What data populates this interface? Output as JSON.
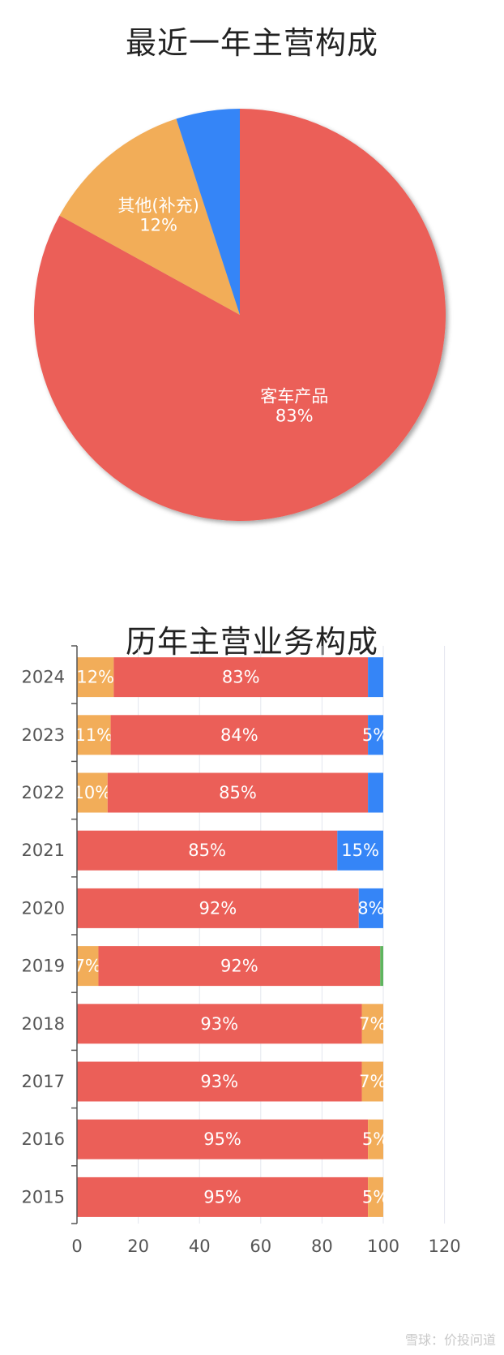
{
  "chart_data": [
    {
      "type": "pie",
      "title": "最近一年主营构成",
      "slices": [
        {
          "name": "客车产品",
          "value": 83,
          "label": "83%",
          "color": "#EB5F58"
        },
        {
          "name": "其他(补充)",
          "value": 12,
          "label": "12%",
          "color": "#F2AD59"
        },
        {
          "name": "",
          "value": 5,
          "label": "",
          "color": "#3585F7"
        }
      ]
    },
    {
      "type": "bar",
      "orientation": "horizontal",
      "stacked": true,
      "title": "历年主营业务构成",
      "categories": [
        "2024",
        "2023",
        "2022",
        "2021",
        "2020",
        "2019",
        "2018",
        "2017",
        "2016",
        "2015"
      ],
      "xlim": [
        0,
        120
      ],
      "xticks": [
        "0",
        "20",
        "40",
        "60",
        "80",
        "100",
        "120"
      ],
      "grid": true,
      "rows": [
        {
          "year": "2024",
          "segments": [
            {
              "value": 12,
              "label": "12%",
              "color": "#F2AD59"
            },
            {
              "value": 83,
              "label": "83%",
              "color": "#EB5F58"
            },
            {
              "value": 5,
              "label": "",
              "color": "#3585F7"
            }
          ]
        },
        {
          "year": "2023",
          "segments": [
            {
              "value": 11,
              "label": "11%",
              "color": "#F2AD59"
            },
            {
              "value": 84,
              "label": "84%",
              "color": "#EB5F58"
            },
            {
              "value": 5,
              "label": "5%",
              "color": "#3585F7"
            }
          ]
        },
        {
          "year": "2022",
          "segments": [
            {
              "value": 10,
              "label": "10%",
              "color": "#F2AD59"
            },
            {
              "value": 85,
              "label": "85%",
              "color": "#EB5F58"
            },
            {
              "value": 5,
              "label": "",
              "color": "#3585F7"
            }
          ]
        },
        {
          "year": "2021",
          "segments": [
            {
              "value": 85,
              "label": "85%",
              "color": "#EB5F58"
            },
            {
              "value": 15,
              "label": "15%",
              "color": "#3585F7"
            }
          ]
        },
        {
          "year": "2020",
          "segments": [
            {
              "value": 92,
              "label": "92%",
              "color": "#EB5F58"
            },
            {
              "value": 8,
              "label": "8%",
              "color": "#3585F7"
            }
          ]
        },
        {
          "year": "2019",
          "segments": [
            {
              "value": 7,
              "label": "7%",
              "color": "#F2AD59"
            },
            {
              "value": 92,
              "label": "92%",
              "color": "#EB5F58"
            },
            {
              "value": 1,
              "label": "",
              "color": "#5FB55F"
            }
          ]
        },
        {
          "year": "2018",
          "segments": [
            {
              "value": 93,
              "label": "93%",
              "color": "#EB5F58"
            },
            {
              "value": 7,
              "label": "7%",
              "color": "#F2AD59"
            }
          ]
        },
        {
          "year": "2017",
          "segments": [
            {
              "value": 93,
              "label": "93%",
              "color": "#EB5F58"
            },
            {
              "value": 7,
              "label": "7%",
              "color": "#F2AD59"
            }
          ]
        },
        {
          "year": "2016",
          "segments": [
            {
              "value": 95,
              "label": "95%",
              "color": "#EB5F58"
            },
            {
              "value": 5,
              "label": "5%",
              "color": "#F2AD59"
            }
          ]
        },
        {
          "year": "2015",
          "segments": [
            {
              "value": 95,
              "label": "95%",
              "color": "#EB5F58"
            },
            {
              "value": 5,
              "label": "5%",
              "color": "#F2AD59"
            }
          ]
        }
      ]
    }
  ],
  "watermark": "雪球：价投问道"
}
